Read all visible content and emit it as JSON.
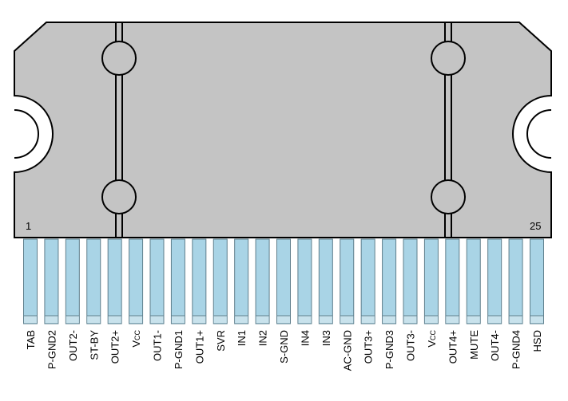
{
  "package": {
    "body_color": "#c4c4c4",
    "outline_color": "#000000",
    "pin_color": "#a9d4e6",
    "pin_band_color": "#c8e2ec",
    "pin_count": 25,
    "first_pin_mark": "1",
    "last_pin_mark": "25"
  },
  "pins": [
    {
      "number": 1,
      "label": "TAB"
    },
    {
      "number": 2,
      "label": "P-GND2"
    },
    {
      "number": 3,
      "label": "OUT2-"
    },
    {
      "number": 4,
      "label": "ST-BY"
    },
    {
      "number": 5,
      "label": "OUT2+"
    },
    {
      "number": 6,
      "label": "VCC",
      "main": "V",
      "sub": "CC"
    },
    {
      "number": 7,
      "label": "OUT1-"
    },
    {
      "number": 8,
      "label": "P-GND1"
    },
    {
      "number": 9,
      "label": "OUT1+"
    },
    {
      "number": 10,
      "label": "SVR"
    },
    {
      "number": 11,
      "label": "IN1"
    },
    {
      "number": 12,
      "label": "IN2"
    },
    {
      "number": 13,
      "label": "S-GND"
    },
    {
      "number": 14,
      "label": "IN4"
    },
    {
      "number": 15,
      "label": "IN3"
    },
    {
      "number": 16,
      "label": "AC-GND"
    },
    {
      "number": 17,
      "label": "OUT3+"
    },
    {
      "number": 18,
      "label": "P-GND3"
    },
    {
      "number": 19,
      "label": "OUT3-"
    },
    {
      "number": 20,
      "label": "VCC",
      "main": "V",
      "sub": "CC"
    },
    {
      "number": 21,
      "label": "OUT4+"
    },
    {
      "number": 22,
      "label": "MUTE"
    },
    {
      "number": 23,
      "label": "OUT4-"
    },
    {
      "number": 24,
      "label": "P-GND4"
    },
    {
      "number": 25,
      "label": "HSD"
    }
  ]
}
